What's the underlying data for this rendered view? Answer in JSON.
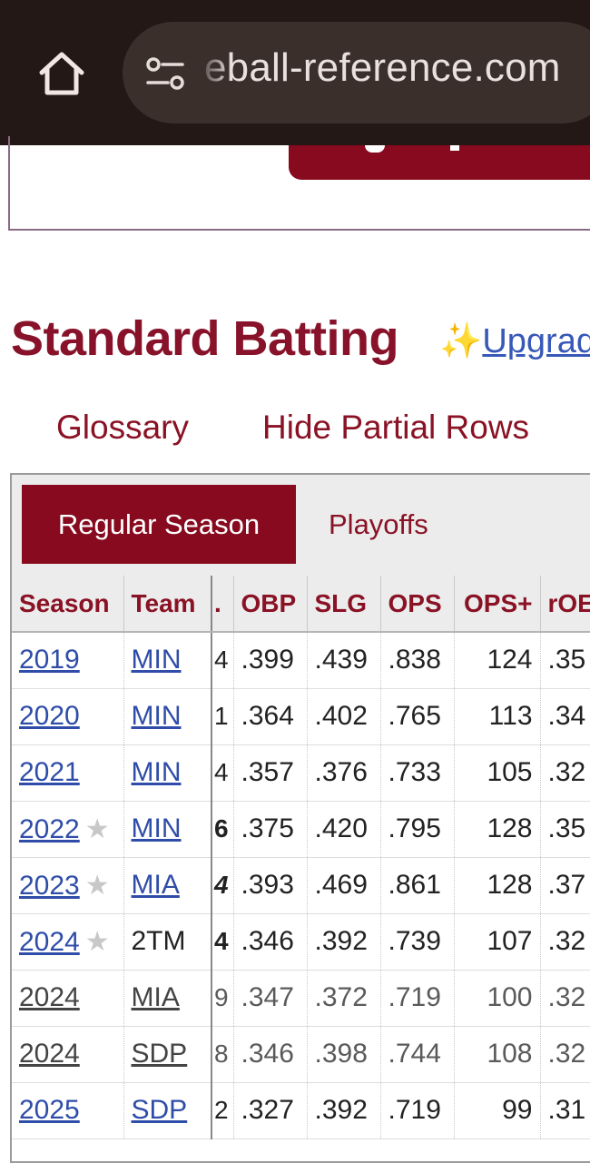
{
  "browser": {
    "url": "eball-reference.com"
  },
  "section": {
    "title": "Standard Batting",
    "upgrade_icon": "✨",
    "upgrade_label": "Upgrad"
  },
  "links": {
    "glossary": "Glossary",
    "hide_partial": "Hide Partial Rows"
  },
  "tabs": {
    "regular": "Regular Season",
    "playoffs": "Playoffs"
  },
  "table": {
    "headers": {
      "season": "Season",
      "team": "Team",
      "cut": ".",
      "obp": "OBP",
      "slg": "SLG",
      "ops": "OPS",
      "ops_plus": "OPS+",
      "roba": "rOE"
    },
    "rows": [
      {
        "season": "2019",
        "star": "",
        "team": "MIN",
        "team_link": true,
        "cut": "4",
        "obp": ".399",
        "slg": ".439",
        "ops": ".838",
        "ops_plus": "124",
        "roba": ".35",
        "partial": false
      },
      {
        "season": "2020",
        "star": "",
        "team": "MIN",
        "team_link": true,
        "cut": "1",
        "obp": ".364",
        "slg": ".402",
        "ops": ".765",
        "ops_plus": "113",
        "roba": ".34",
        "partial": false
      },
      {
        "season": "2021",
        "star": "",
        "team": "MIN",
        "team_link": true,
        "cut": "4",
        "obp": ".357",
        "slg": ".376",
        "ops": ".733",
        "ops_plus": "105",
        "roba": ".32",
        "partial": false
      },
      {
        "season": "2022",
        "star": "★",
        "team": "MIN",
        "team_link": true,
        "cut": "6",
        "obp": ".375",
        "slg": ".420",
        "ops": ".795",
        "ops_plus": "128",
        "roba": ".35",
        "partial": false
      },
      {
        "season": "2023",
        "star": "★",
        "team": "MIA",
        "team_link": true,
        "cut": "4",
        "obp": ".393",
        "slg": ".469",
        "ops": ".861",
        "ops_plus": "128",
        "roba": ".37",
        "partial": false
      },
      {
        "season": "2024",
        "star": "★",
        "team": "2TM",
        "team_link": false,
        "cut": "4",
        "obp": ".346",
        "slg": ".392",
        "ops": ".739",
        "ops_plus": "107",
        "roba": ".32",
        "partial": false
      },
      {
        "season": "2024",
        "star": "",
        "team": "MIA",
        "team_link": true,
        "cut": "9",
        "obp": ".347",
        "slg": ".372",
        "ops": ".719",
        "ops_plus": "100",
        "roba": ".32",
        "partial": true
      },
      {
        "season": "2024",
        "star": "",
        "team": "SDP",
        "team_link": true,
        "cut": "8",
        "obp": ".346",
        "slg": ".398",
        "ops": ".744",
        "ops_plus": "108",
        "roba": ".32",
        "partial": true
      },
      {
        "season": "2025",
        "star": "",
        "team": "SDP",
        "team_link": true,
        "cut": "2",
        "obp": ".327",
        "slg": ".392",
        "ops": ".719",
        "ops_plus": "99",
        "roba": ".31",
        "partial": false
      }
    ]
  },
  "colors": {
    "brand_red": "#870a1f",
    "link_blue": "#2f4da8",
    "browser_bar": "#231816"
  }
}
